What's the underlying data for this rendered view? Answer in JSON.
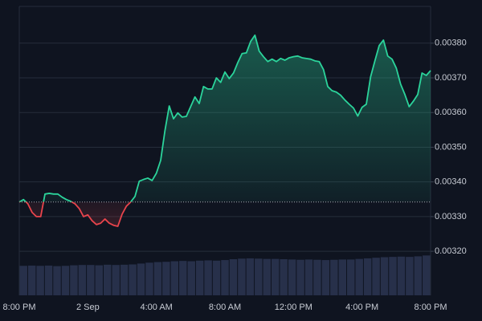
{
  "chart_data": {
    "type": "line",
    "categories": [
      "8:00 PM",
      null,
      null,
      null,
      null,
      null,
      null,
      null,
      null,
      null,
      null,
      null,
      null,
      null,
      null,
      null,
      "2 Sep",
      null,
      null,
      null,
      null,
      null,
      null,
      null,
      null,
      null,
      null,
      null,
      null,
      null,
      null,
      null,
      "4:00 AM",
      null,
      null,
      null,
      null,
      null,
      null,
      null,
      null,
      null,
      null,
      null,
      null,
      null,
      null,
      null,
      "8:00 AM",
      null,
      null,
      null,
      null,
      null,
      null,
      null,
      null,
      null,
      null,
      null,
      null,
      null,
      null,
      null,
      "12:00 PM",
      null,
      null,
      null,
      null,
      null,
      null,
      null,
      null,
      null,
      null,
      null,
      null,
      null,
      null,
      null,
      "4:00 PM",
      null,
      null,
      null,
      null,
      null,
      null,
      null,
      null,
      null,
      null,
      null,
      null,
      null,
      null,
      null,
      "8:00 PM"
    ],
    "values": [
      0.003342,
      0.003349,
      0.003337,
      0.003312,
      0.0033,
      0.0033,
      0.003365,
      0.003367,
      0.003365,
      0.003365,
      0.003356,
      0.003349,
      0.003344,
      0.003337,
      0.003323,
      0.0033,
      0.003305,
      0.003288,
      0.003277,
      0.003281,
      0.003293,
      0.003281,
      0.003275,
      0.003272,
      0.003307,
      0.00333,
      0.003342,
      0.003358,
      0.003402,
      0.003407,
      0.003411,
      0.003404,
      0.003425,
      0.003462,
      0.003548,
      0.003619,
      0.003582,
      0.003599,
      0.003587,
      0.003589,
      0.003617,
      0.003645,
      0.003626,
      0.003675,
      0.003668,
      0.003668,
      0.0037,
      0.003687,
      0.003717,
      0.003698,
      0.003714,
      0.003744,
      0.00377,
      0.003772,
      0.003805,
      0.003823,
      0.003777,
      0.003761,
      0.003747,
      0.003754,
      0.003747,
      0.003756,
      0.003751,
      0.003758,
      0.003761,
      0.003763,
      0.003758,
      0.003756,
      0.003754,
      0.003749,
      0.003747,
      0.003724,
      0.003675,
      0.003663,
      0.003659,
      0.00365,
      0.003636,
      0.003624,
      0.003613,
      0.00359,
      0.003615,
      0.003624,
      0.003703,
      0.003749,
      0.003793,
      0.003809,
      0.003763,
      0.003754,
      0.003728,
      0.003682,
      0.003652,
      0.003617,
      0.003633,
      0.003652,
      0.003714,
      0.003707,
      0.003721
    ],
    "baseline": 0.003342,
    "up_color": "#2bd49b",
    "down_color": "#e8444c",
    "ylim": [
      0.003073,
      0.003906
    ],
    "yticks": [
      {
        "value": 0.0032,
        "label": "0.00320"
      },
      {
        "value": 0.0033,
        "label": "0.00330"
      },
      {
        "value": 0.0034,
        "label": "0.00340"
      },
      {
        "value": 0.0035,
        "label": "0.00350"
      },
      {
        "value": 0.0036,
        "label": "0.00360"
      },
      {
        "value": 0.0037,
        "label": "0.00370"
      },
      {
        "value": 0.0038,
        "label": "0.00380"
      }
    ],
    "grid": true,
    "volume": {
      "color": "#2b3552",
      "ylim": [
        0,
        100
      ],
      "values": [
        10.2,
        10.3,
        10.2,
        10.3,
        10.1,
        10.2,
        10.4,
        10.5,
        10.5,
        10.4,
        10.6,
        10.5,
        10.6,
        10.7,
        11.0,
        11.3,
        11.5,
        11.6,
        11.8,
        11.9,
        11.8,
        12.0,
        12.1,
        12.0,
        12.2,
        12.5,
        12.7,
        12.8,
        12.7,
        12.6,
        12.6,
        12.5,
        12.4,
        12.3,
        12.4,
        12.3,
        12.2,
        12.3,
        12.4,
        12.4,
        12.6,
        12.8,
        13.0,
        13.2,
        13.3,
        13.4,
        13.3,
        13.5,
        13.8
      ]
    }
  }
}
